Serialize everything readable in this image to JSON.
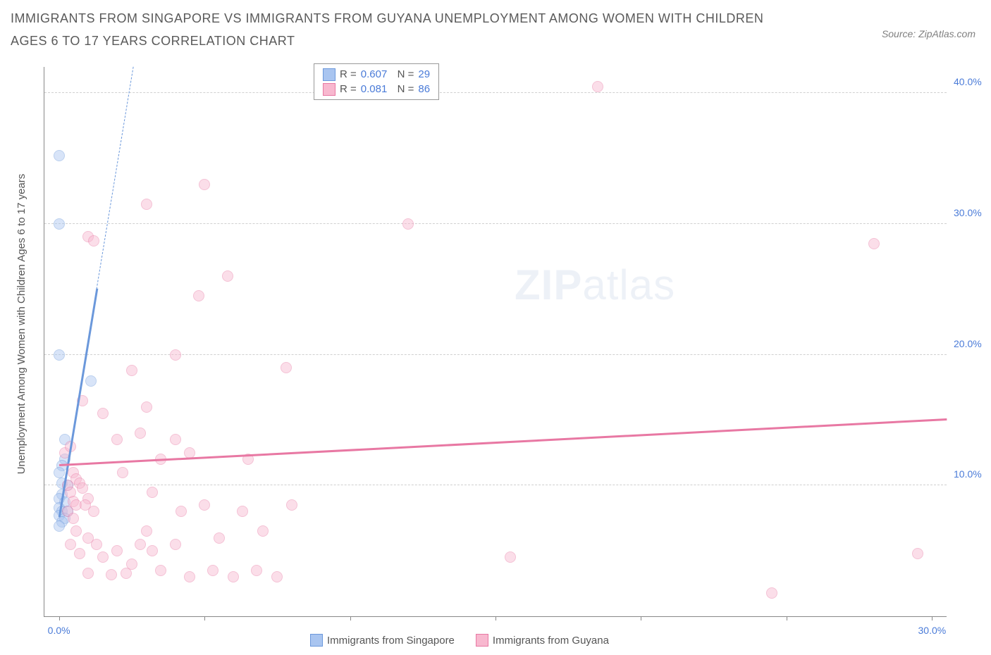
{
  "title": "IMMIGRANTS FROM SINGAPORE VS IMMIGRANTS FROM GUYANA UNEMPLOYMENT AMONG WOMEN WITH CHILDREN AGES 6 TO 17 YEARS CORRELATION CHART",
  "source": "Source: ZipAtlas.com",
  "ylabel": "Unemployment Among Women with Children Ages 6 to 17 years",
  "watermark_prefix": "ZIP",
  "watermark_suffix": "atlas",
  "chart": {
    "type": "scatter",
    "xlim": [
      -0.5,
      30.5
    ],
    "ylim": [
      0,
      42
    ],
    "xtick_positions": [
      0,
      5,
      10,
      15,
      20,
      25,
      30
    ],
    "xtick_labels": [
      "0.0%",
      "",
      "",
      "",
      "",
      "",
      "30.0%"
    ],
    "ytick_positions": [
      10,
      20,
      30,
      40
    ],
    "ytick_labels": [
      "10.0%",
      "20.0%",
      "30.0%",
      "40.0%"
    ],
    "background_color": "#ffffff",
    "grid_color": "#d0d0d0",
    "axis_color": "#888888",
    "marker_radius": 8,
    "marker_opacity": 0.45,
    "series": [
      {
        "name": "Immigrants from Singapore",
        "color": "#7aa5e8",
        "fill": "#a9c5f0",
        "stroke": "#6b98db",
        "R": "0.607",
        "N": "29",
        "trend": {
          "x1": 0,
          "y1": 7.5,
          "x2": 1.3,
          "y2": 25,
          "dashed_to_y": 42,
          "width": 2.5
        },
        "points": [
          [
            0.0,
            35.2
          ],
          [
            0.0,
            30.0
          ],
          [
            0.0,
            20.0
          ],
          [
            0.2,
            13.5
          ],
          [
            0.2,
            12.0
          ],
          [
            0.1,
            11.5
          ],
          [
            0.0,
            11.0
          ],
          [
            0.1,
            10.2
          ],
          [
            0.3,
            10.0
          ],
          [
            0.1,
            9.3
          ],
          [
            0.0,
            9.0
          ],
          [
            0.2,
            8.7
          ],
          [
            0.0,
            8.3
          ],
          [
            0.1,
            8.0
          ],
          [
            0.3,
            8.0
          ],
          [
            0.0,
            7.7
          ],
          [
            0.2,
            7.5
          ],
          [
            0.1,
            7.2
          ],
          [
            0.0,
            6.9
          ],
          [
            1.1,
            18.0
          ]
        ]
      },
      {
        "name": "Immigrants from Guyana",
        "color": "#f28bb3",
        "fill": "#f8b8cf",
        "stroke": "#e878a3",
        "R": "0.081",
        "N": "86",
        "trend": {
          "x1": 0,
          "y1": 11.5,
          "x2": 30.5,
          "y2": 15.0,
          "width": 2.5
        },
        "points": [
          [
            0.2,
            12.5
          ],
          [
            0.4,
            13.0
          ],
          [
            0.5,
            11.0
          ],
          [
            0.6,
            10.5
          ],
          [
            0.3,
            10.0
          ],
          [
            0.7,
            10.2
          ],
          [
            0.4,
            9.5
          ],
          [
            0.8,
            9.8
          ],
          [
            0.5,
            8.8
          ],
          [
            0.6,
            8.5
          ],
          [
            1.0,
            9.0
          ],
          [
            0.3,
            8.0
          ],
          [
            0.9,
            8.5
          ],
          [
            0.5,
            7.5
          ],
          [
            1.2,
            8.0
          ],
          [
            0.6,
            6.5
          ],
          [
            1.0,
            6.0
          ],
          [
            0.4,
            5.5
          ],
          [
            1.3,
            5.5
          ],
          [
            0.7,
            4.8
          ],
          [
            1.5,
            4.5
          ],
          [
            1.0,
            3.3
          ],
          [
            1.8,
            3.2
          ],
          [
            2.3,
            3.3
          ],
          [
            2.0,
            5.0
          ],
          [
            2.5,
            4.0
          ],
          [
            2.8,
            5.5
          ],
          [
            3.0,
            6.5
          ],
          [
            3.2,
            5.0
          ],
          [
            3.5,
            3.5
          ],
          [
            4.0,
            5.5
          ],
          [
            4.2,
            8.0
          ],
          [
            4.5,
            3.0
          ],
          [
            5.0,
            8.5
          ],
          [
            5.3,
            3.5
          ],
          [
            5.5,
            6.0
          ],
          [
            6.0,
            3.0
          ],
          [
            6.3,
            8.0
          ],
          [
            6.8,
            3.5
          ],
          [
            7.0,
            6.5
          ],
          [
            7.5,
            3.0
          ],
          [
            8.0,
            8.5
          ],
          [
            1.0,
            29.0
          ],
          [
            1.2,
            28.7
          ],
          [
            0.8,
            16.5
          ],
          [
            1.5,
            15.5
          ],
          [
            2.0,
            13.5
          ],
          [
            2.5,
            18.8
          ],
          [
            3.0,
            16.0
          ],
          [
            2.2,
            11.0
          ],
          [
            3.5,
            12.0
          ],
          [
            2.8,
            14.0
          ],
          [
            3.2,
            9.5
          ],
          [
            4.0,
            13.5
          ],
          [
            3.0,
            31.5
          ],
          [
            4.0,
            20.0
          ],
          [
            4.8,
            24.5
          ],
          [
            5.0,
            33.0
          ],
          [
            5.8,
            26.0
          ],
          [
            6.5,
            12.0
          ],
          [
            7.8,
            19.0
          ],
          [
            4.5,
            12.5
          ],
          [
            12.0,
            30.0
          ],
          [
            15.5,
            4.5
          ],
          [
            18.5,
            40.5
          ],
          [
            24.5,
            1.8
          ],
          [
            28.0,
            28.5
          ],
          [
            29.5,
            4.8
          ]
        ]
      }
    ]
  },
  "colors": {
    "title": "#5a5a5a",
    "tick_label": "#4a7bd8",
    "text": "#555555"
  }
}
